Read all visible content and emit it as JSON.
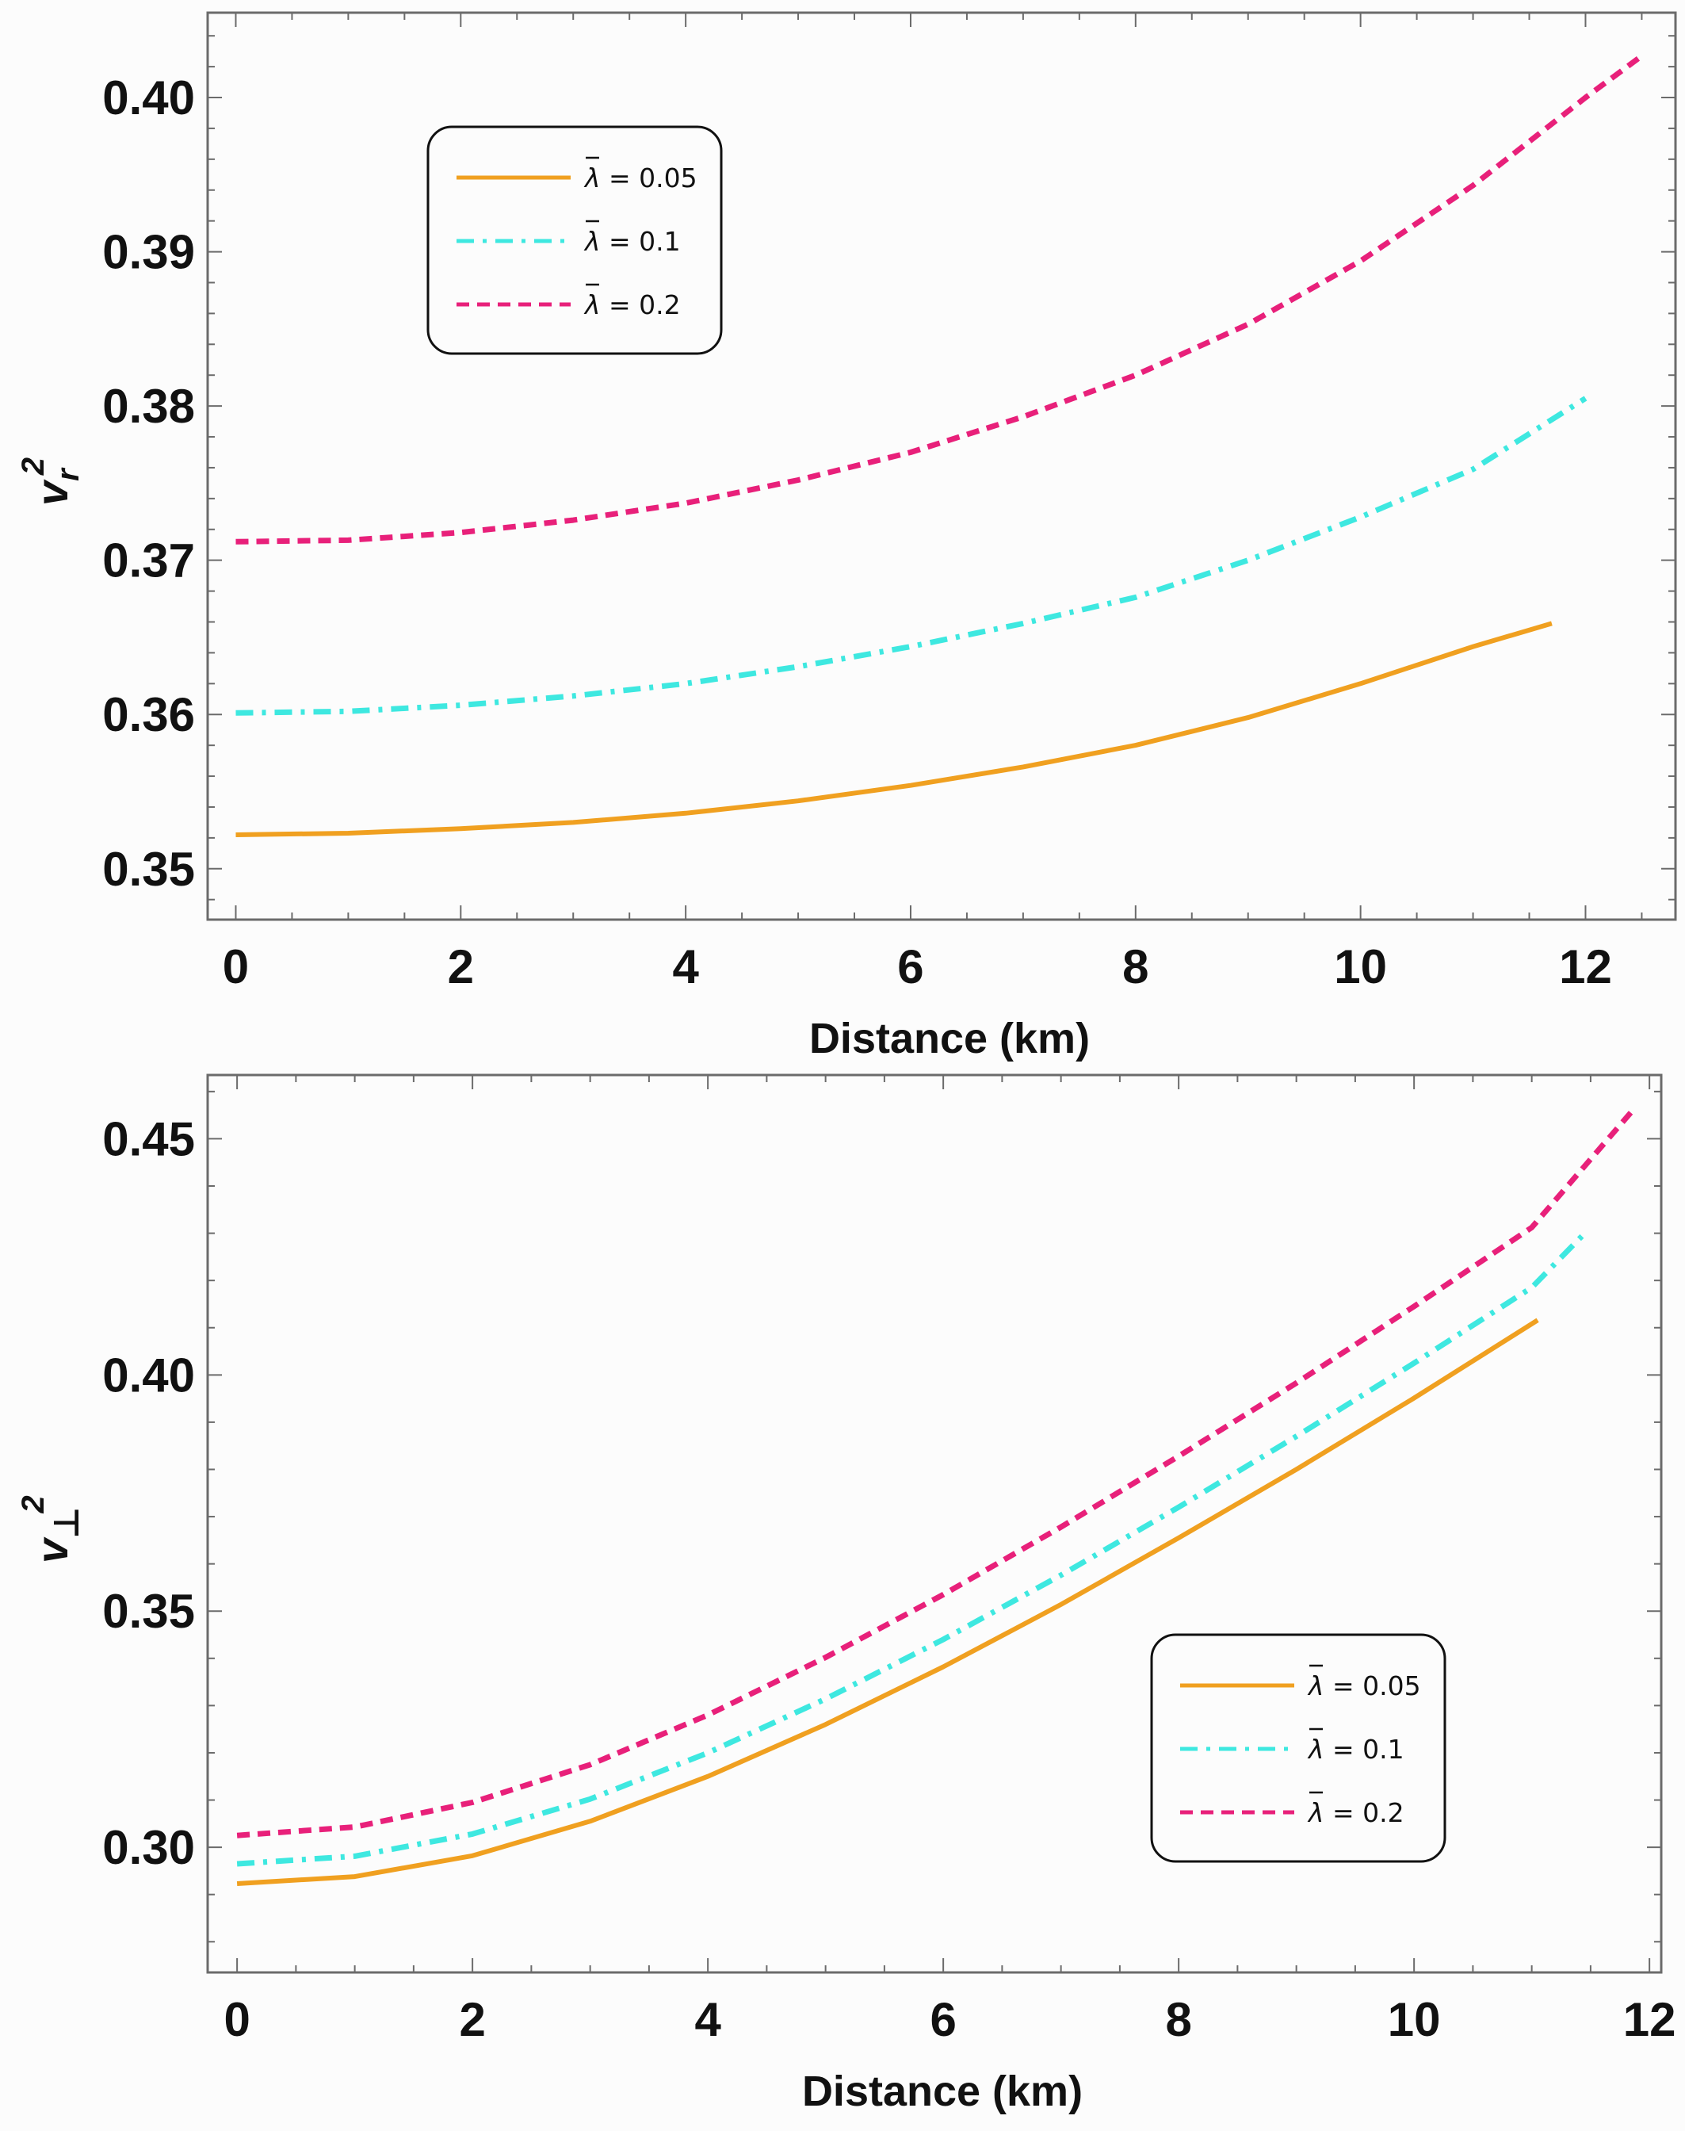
{
  "colors": {
    "lambda_0_05": "#f0a020",
    "lambda_0_1": "#3ee8e0",
    "lambda_0_2": "#e8207a",
    "frame": "#6b6b6b",
    "background": "#fcfcfc"
  },
  "chart_data": [
    {
      "type": "line",
      "xlabel": "Distance (km)",
      "ylabel_base": "v",
      "ylabel_subscript": "r",
      "ylabel_superscript": "2",
      "xlim": [
        -0.25,
        12.8
      ],
      "ylim": [
        0.3467,
        0.4055
      ],
      "x_ticks": [
        0,
        2,
        4,
        6,
        8,
        10,
        12
      ],
      "x_tick_labels": [
        "0",
        "2",
        "4",
        "6",
        "8",
        "10",
        "12"
      ],
      "y_ticks": [
        0.35,
        0.36,
        0.37,
        0.38,
        0.39,
        0.4
      ],
      "y_tick_labels": [
        "0.35",
        "0.36",
        "0.37",
        "0.38",
        "0.39",
        "0.40"
      ],
      "legend_position": "top-left",
      "series": [
        {
          "name": "λ̄ = 0.05",
          "label_symbol": "λ",
          "label_value": " = 0.05",
          "style": "solid",
          "x": [
            0,
            1,
            2,
            3,
            4,
            5,
            6,
            7,
            8,
            9,
            10,
            11,
            11.7
          ],
          "y": [
            0.3522,
            0.3523,
            0.3526,
            0.353,
            0.3536,
            0.3544,
            0.3554,
            0.3566,
            0.358,
            0.3598,
            0.362,
            0.3644,
            0.3659
          ]
        },
        {
          "name": "λ̄ = 0.1",
          "label_symbol": "λ",
          "label_value": " = 0.1",
          "style": "dashdot",
          "x": [
            0,
            1,
            2,
            3,
            4,
            5,
            6,
            7,
            8,
            9,
            10,
            11,
            12
          ],
          "y": [
            0.3601,
            0.3602,
            0.3606,
            0.3612,
            0.362,
            0.3631,
            0.3644,
            0.3659,
            0.3676,
            0.37,
            0.3728,
            0.3759,
            0.3805
          ]
        },
        {
          "name": "λ̄ = 0.2",
          "label_symbol": "λ",
          "label_value": " = 0.2",
          "style": "dashed",
          "x": [
            0,
            1,
            2,
            3,
            4,
            5,
            6,
            7,
            8,
            9,
            10,
            11,
            12,
            12.5
          ],
          "y": [
            0.3712,
            0.3713,
            0.3718,
            0.3726,
            0.3737,
            0.3752,
            0.377,
            0.3793,
            0.382,
            0.3853,
            0.3894,
            0.3943,
            0.4,
            0.4027
          ]
        }
      ]
    },
    {
      "type": "line",
      "xlabel": "Distance (km)",
      "ylabel_base": "v",
      "ylabel_subscript": "⊥",
      "ylabel_superscript": "2",
      "xlim": [
        -0.25,
        12.1
      ],
      "ylim": [
        0.2735,
        0.4635
      ],
      "x_ticks": [
        0,
        2,
        4,
        6,
        8,
        10,
        12
      ],
      "x_tick_labels": [
        "0",
        "2",
        "4",
        "6",
        "8",
        "10",
        "12"
      ],
      "y_ticks": [
        0.3,
        0.35,
        0.4,
        0.45
      ],
      "y_tick_labels": [
        "0.30",
        "0.35",
        "0.40",
        "0.45"
      ],
      "legend_position": "bottom-right",
      "series": [
        {
          "name": "λ̄ = 0.05",
          "label_symbol": "λ",
          "label_value": " = 0.05",
          "style": "solid",
          "x": [
            0,
            1,
            2,
            3,
            4,
            5,
            6,
            7,
            8,
            9,
            10,
            11.05
          ],
          "y": [
            0.2923,
            0.2938,
            0.2982,
            0.3055,
            0.315,
            0.326,
            0.3382,
            0.3514,
            0.3655,
            0.38,
            0.3951,
            0.4116
          ]
        },
        {
          "name": "λ̄ = 0.1",
          "label_symbol": "λ",
          "label_value": " = 0.1",
          "style": "dashdot",
          "x": [
            0,
            1,
            2,
            3,
            4,
            5,
            6,
            7,
            8,
            9,
            10,
            11,
            11.45
          ],
          "y": [
            0.2965,
            0.2981,
            0.3028,
            0.3102,
            0.32,
            0.3314,
            0.344,
            0.3576,
            0.372,
            0.387,
            0.4025,
            0.4185,
            0.43
          ]
        },
        {
          "name": "λ̄ = 0.2",
          "label_symbol": "λ",
          "label_value": " = 0.2",
          "style": "dashed",
          "x": [
            0,
            1,
            2,
            3,
            4,
            5,
            6,
            7,
            8,
            9,
            10,
            11,
            11.85
          ],
          "y": [
            0.3025,
            0.3043,
            0.3095,
            0.3175,
            0.328,
            0.3402,
            0.3535,
            0.3678,
            0.3828,
            0.3983,
            0.4145,
            0.4312,
            0.4558
          ]
        }
      ]
    }
  ]
}
